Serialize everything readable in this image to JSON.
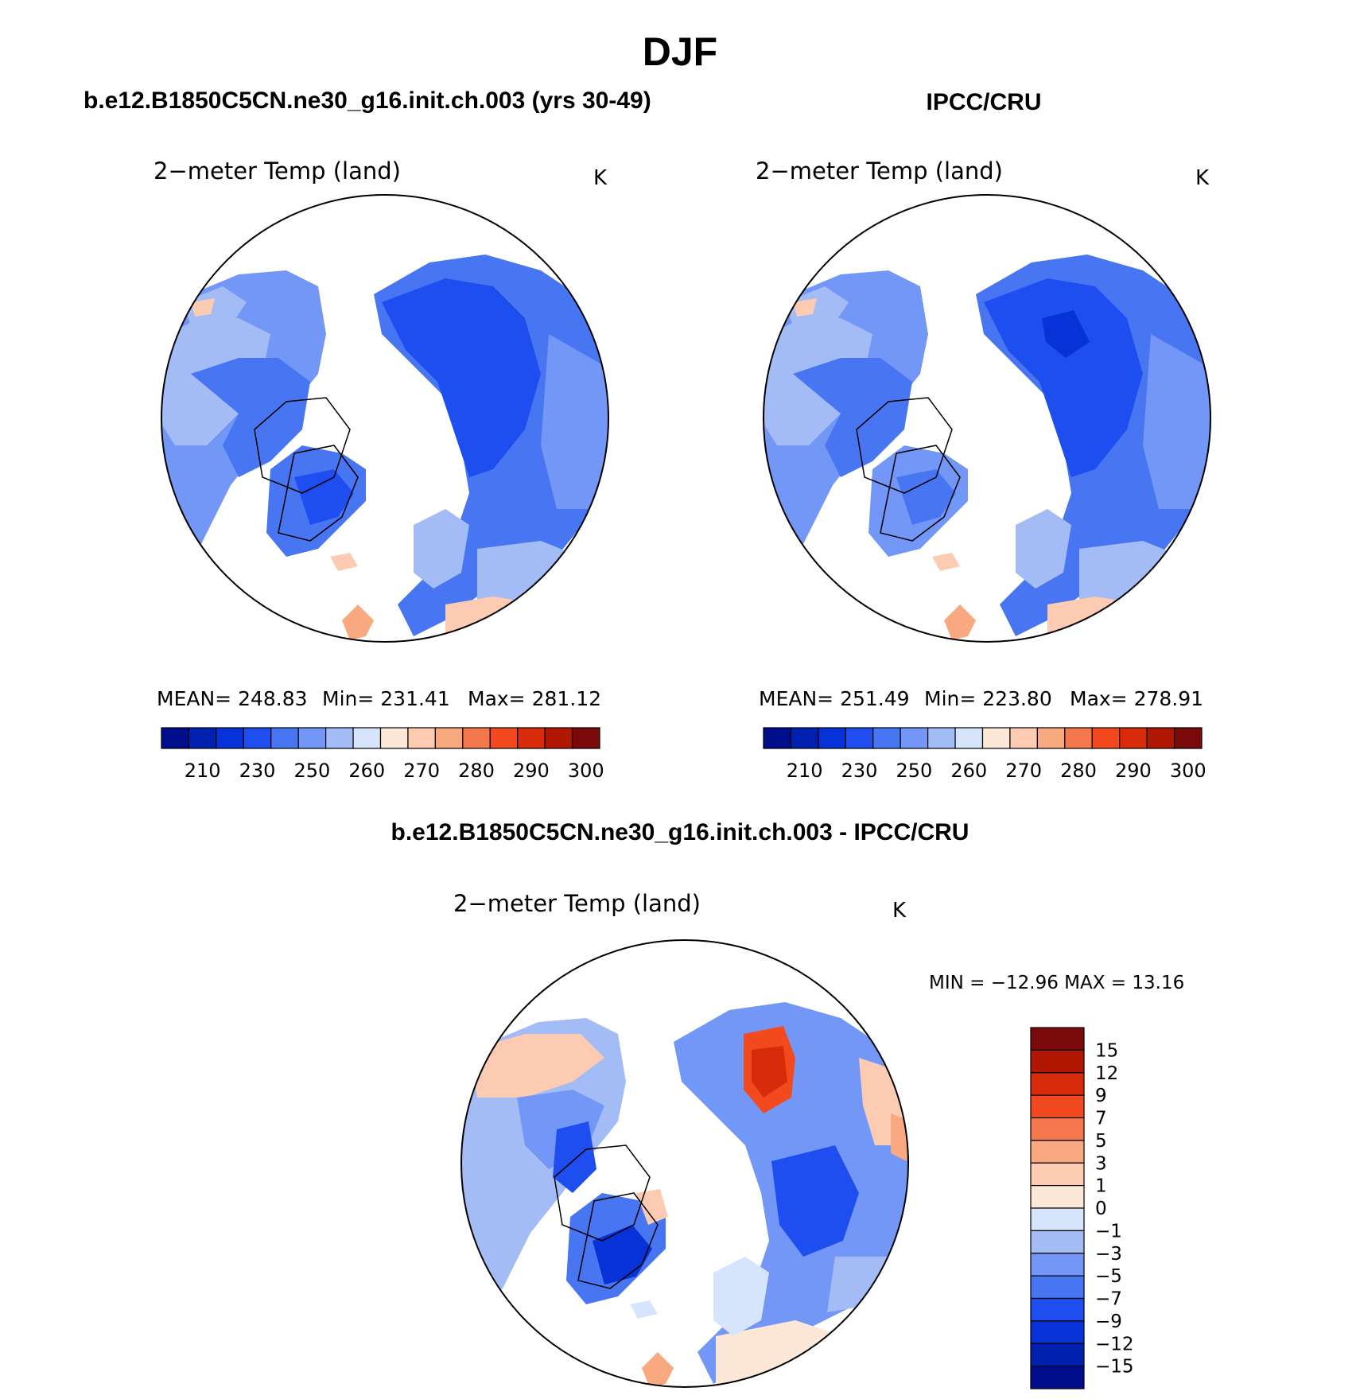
{
  "page": {
    "season": "DJF",
    "left_header": "b.e12.B1850C5CN.ne30_g16.init.ch.003 (yrs 30-49)",
    "right_header": "IPCC/CRU",
    "bottom_header": "b.e12.B1850C5CN.ne30_g16.init.ch.003 - IPCC/CRU"
  },
  "chart_data": [
    {
      "type": "heatmap",
      "projection": "north polar stereographic",
      "title": "2−meter Temp (land)",
      "units": "K",
      "stats": {
        "mean": "MEAN=  248.83",
        "min": "Min=  231.41",
        "max": "Max=  281.12"
      },
      "mean": 248.83,
      "min": 231.41,
      "max": 281.12,
      "colorbar": {
        "orientation": "horizontal",
        "tick_labels": [
          "210",
          "230",
          "250",
          "260",
          "270",
          "280",
          "290",
          "300"
        ],
        "colors": [
          "#000e8c",
          "#0021b0",
          "#0732d8",
          "#1e4ef0",
          "#4876f2",
          "#7397f6",
          "#a3bcf6",
          "#d6e5fb",
          "#fde8d8",
          "#fccbb2",
          "#f9a980",
          "#f6784e",
          "#f24a1e",
          "#d72b0c",
          "#b01804",
          "#7a0a0a"
        ]
      }
    },
    {
      "type": "heatmap",
      "projection": "north polar stereographic",
      "title": "2−meter Temp (land)",
      "units": "K",
      "stats": {
        "mean": "MEAN=  251.49",
        "min": "Min=  223.80",
        "max": "Max=  278.91"
      },
      "mean": 251.49,
      "min": 223.8,
      "max": 278.91,
      "colorbar": {
        "orientation": "horizontal",
        "tick_labels": [
          "210",
          "230",
          "250",
          "260",
          "270",
          "280",
          "290",
          "300"
        ],
        "colors": [
          "#000e8c",
          "#0021b0",
          "#0732d8",
          "#1e4ef0",
          "#4876f2",
          "#7397f6",
          "#a3bcf6",
          "#d6e5fb",
          "#fde8d8",
          "#fccbb2",
          "#f9a980",
          "#f6784e",
          "#f24a1e",
          "#d72b0c",
          "#b01804",
          "#7a0a0a"
        ]
      }
    },
    {
      "type": "heatmap",
      "projection": "north polar stereographic",
      "title": "2−meter Temp (land)",
      "units": "K",
      "stats": {
        "minmax": "MIN = −12.96  MAX =   13.16"
      },
      "min": -12.96,
      "max": 13.16,
      "colorbar": {
        "orientation": "vertical",
        "tick_labels": [
          "15",
          "12",
          "9",
          "7",
          "5",
          "3",
          "1",
          "0",
          "−1",
          "−3",
          "−5",
          "−7",
          "−9",
          "−12",
          "−15"
        ],
        "colors": [
          "#7a0a0a",
          "#b01804",
          "#d72b0c",
          "#f24a1e",
          "#f6784e",
          "#f9a980",
          "#fccbb2",
          "#fde8d8",
          "#d6e5fb",
          "#a3bcf6",
          "#7397f6",
          "#4876f2",
          "#1e4ef0",
          "#0732d8",
          "#0021b0",
          "#000e8c"
        ]
      }
    }
  ]
}
